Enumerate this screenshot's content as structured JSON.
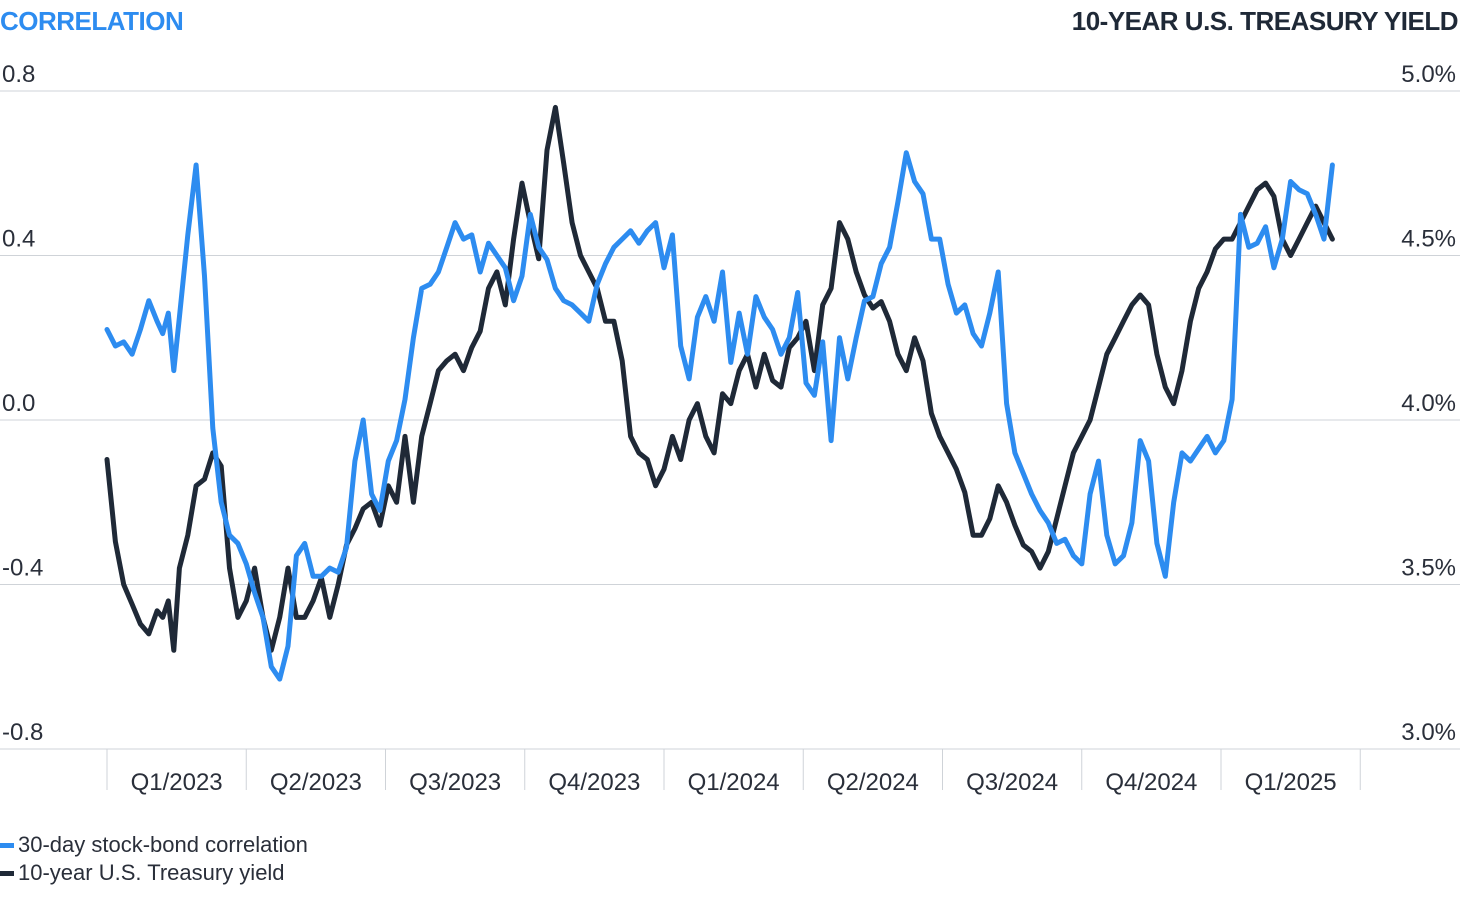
{
  "chart_data": {
    "type": "line",
    "title": "",
    "left_axis_title": "CORRELATION",
    "right_axis_title": "10-YEAR U.S. TREASURY YIELD",
    "left_ylim": [
      -0.8,
      0.8
    ],
    "right_ylim": [
      3.0,
      5.0
    ],
    "left_ticks": [
      "0.8",
      "0.4",
      "0.0",
      "-0.4",
      "-0.8"
    ],
    "left_tick_values": [
      0.8,
      0.4,
      0.0,
      -0.4,
      -0.8
    ],
    "right_ticks": [
      "5.0%",
      "4.5%",
      "4.0%",
      "3.5%",
      "3.0%"
    ],
    "x_categories": [
      "Q1/2023",
      "Q2/2023",
      "Q3/2023",
      "Q4/2023",
      "Q1/2024",
      "Q2/2024",
      "Q3/2024",
      "Q4/2024",
      "Q1/2025"
    ],
    "grid": true,
    "legend_position": "bottom-left",
    "colors": {
      "correlation": "#2d8cf0",
      "yield": "#1f2937",
      "grid": "#cfd3d8"
    },
    "series": [
      {
        "name": "30-day stock-bond correlation",
        "axis": "left",
        "x": [
          0.0,
          0.06,
          0.12,
          0.18,
          0.24,
          0.3,
          0.36,
          0.4,
          0.44,
          0.48,
          0.52,
          0.58,
          0.64,
          0.7,
          0.76,
          0.82,
          0.88,
          0.94,
          1.0,
          1.06,
          1.12,
          1.18,
          1.24,
          1.3,
          1.36,
          1.42,
          1.48,
          1.54,
          1.6,
          1.66,
          1.72,
          1.78,
          1.84,
          1.9,
          1.96,
          2.02,
          2.08,
          2.14,
          2.2,
          2.26,
          2.32,
          2.38,
          2.44,
          2.5,
          2.56,
          2.62,
          2.68,
          2.74,
          2.8,
          2.86,
          2.92,
          2.98,
          3.04,
          3.1,
          3.16,
          3.22,
          3.28,
          3.34,
          3.4,
          3.46,
          3.52,
          3.58,
          3.64,
          3.7,
          3.76,
          3.82,
          3.88,
          3.94,
          4.0,
          4.06,
          4.12,
          4.18,
          4.24,
          4.3,
          4.36,
          4.42,
          4.48,
          4.54,
          4.6,
          4.66,
          4.72,
          4.78,
          4.84,
          4.9,
          4.96,
          5.02,
          5.08,
          5.14,
          5.2,
          5.26,
          5.32,
          5.38,
          5.44,
          5.5,
          5.56,
          5.62,
          5.68,
          5.74,
          5.8,
          5.86,
          5.92,
          5.98,
          6.04,
          6.1,
          6.16,
          6.22,
          6.28,
          6.34,
          6.4,
          6.46,
          6.52,
          6.58,
          6.64,
          6.7,
          6.76,
          6.82,
          6.88,
          6.94,
          7.0,
          7.06,
          7.12,
          7.18,
          7.24,
          7.3,
          7.36,
          7.42,
          7.48,
          7.54,
          7.6,
          7.66,
          7.72,
          7.78,
          7.84,
          7.9,
          7.96,
          8.02,
          8.08,
          8.14,
          8.2,
          8.26,
          8.32,
          8.38,
          8.44,
          8.5,
          8.56,
          8.62,
          8.68,
          8.74,
          8.8
        ],
        "values": [
          0.22,
          0.18,
          0.19,
          0.16,
          0.22,
          0.29,
          0.24,
          0.21,
          0.26,
          0.12,
          0.25,
          0.45,
          0.62,
          0.35,
          -0.02,
          -0.2,
          -0.28,
          -0.3,
          -0.35,
          -0.42,
          -0.48,
          -0.6,
          -0.63,
          -0.55,
          -0.33,
          -0.3,
          -0.38,
          -0.38,
          -0.36,
          -0.37,
          -0.31,
          -0.1,
          0.0,
          -0.18,
          -0.22,
          -0.1,
          -0.05,
          0.05,
          0.2,
          0.32,
          0.33,
          0.36,
          0.42,
          0.48,
          0.44,
          0.45,
          0.36,
          0.43,
          0.4,
          0.37,
          0.29,
          0.35,
          0.5,
          0.42,
          0.39,
          0.32,
          0.29,
          0.28,
          0.26,
          0.24,
          0.33,
          0.38,
          0.42,
          0.44,
          0.46,
          0.43,
          0.46,
          0.48,
          0.37,
          0.45,
          0.18,
          0.1,
          0.25,
          0.3,
          0.24,
          0.36,
          0.14,
          0.26,
          0.16,
          0.3,
          0.25,
          0.22,
          0.16,
          0.2,
          0.31,
          0.09,
          0.06,
          0.19,
          -0.05,
          0.2,
          0.1,
          0.2,
          0.29,
          0.3,
          0.38,
          0.42,
          0.53,
          0.65,
          0.58,
          0.55,
          0.44,
          0.44,
          0.33,
          0.26,
          0.28,
          0.21,
          0.18,
          0.26,
          0.36,
          0.04,
          -0.08,
          -0.13,
          -0.18,
          -0.22,
          -0.25,
          -0.3,
          -0.29,
          -0.33,
          -0.35,
          -0.18,
          -0.1,
          -0.28,
          -0.35,
          -0.33,
          -0.25,
          -0.05,
          -0.1,
          -0.3,
          -0.38,
          -0.2,
          -0.08,
          -0.1,
          -0.07,
          -0.04,
          -0.08,
          -0.05,
          0.05,
          0.5,
          0.42,
          0.43,
          0.47,
          0.37,
          0.44,
          0.58,
          0.56,
          0.55,
          0.5,
          0.44,
          0.62
        ]
      },
      {
        "name": "10-year U.S. Treasury yield",
        "axis": "right",
        "x": [
          0.0,
          0.06,
          0.12,
          0.18,
          0.24,
          0.3,
          0.36,
          0.4,
          0.44,
          0.48,
          0.52,
          0.58,
          0.64,
          0.7,
          0.76,
          0.82,
          0.88,
          0.94,
          1.0,
          1.06,
          1.12,
          1.18,
          1.24,
          1.3,
          1.36,
          1.42,
          1.48,
          1.54,
          1.6,
          1.66,
          1.72,
          1.78,
          1.84,
          1.9,
          1.96,
          2.02,
          2.08,
          2.14,
          2.2,
          2.26,
          2.32,
          2.38,
          2.44,
          2.5,
          2.56,
          2.62,
          2.68,
          2.74,
          2.8,
          2.86,
          2.92,
          2.98,
          3.04,
          3.1,
          3.16,
          3.22,
          3.28,
          3.34,
          3.4,
          3.46,
          3.52,
          3.58,
          3.64,
          3.7,
          3.76,
          3.82,
          3.88,
          3.94,
          4.0,
          4.06,
          4.12,
          4.18,
          4.24,
          4.3,
          4.36,
          4.42,
          4.48,
          4.54,
          4.6,
          4.66,
          4.72,
          4.78,
          4.84,
          4.9,
          4.96,
          5.02,
          5.08,
          5.14,
          5.2,
          5.26,
          5.32,
          5.38,
          5.44,
          5.5,
          5.56,
          5.62,
          5.68,
          5.74,
          5.8,
          5.86,
          5.92,
          5.98,
          6.04,
          6.1,
          6.16,
          6.22,
          6.28,
          6.34,
          6.4,
          6.46,
          6.52,
          6.58,
          6.64,
          6.7,
          6.76,
          6.82,
          6.88,
          6.94,
          7.0,
          7.06,
          7.12,
          7.18,
          7.24,
          7.3,
          7.36,
          7.42,
          7.48,
          7.54,
          7.6,
          7.66,
          7.72,
          7.78,
          7.84,
          7.9,
          7.96,
          8.02,
          8.08,
          8.14,
          8.2,
          8.26,
          8.32,
          8.38,
          8.44,
          8.5,
          8.56,
          8.62,
          8.68,
          8.74,
          8.8
        ],
        "values": [
          3.88,
          3.63,
          3.5,
          3.44,
          3.38,
          3.35,
          3.42,
          3.4,
          3.45,
          3.3,
          3.55,
          3.65,
          3.8,
          3.82,
          3.9,
          3.86,
          3.55,
          3.4,
          3.45,
          3.55,
          3.4,
          3.3,
          3.4,
          3.55,
          3.4,
          3.4,
          3.45,
          3.52,
          3.4,
          3.5,
          3.62,
          3.67,
          3.73,
          3.75,
          3.68,
          3.8,
          3.75,
          3.95,
          3.75,
          3.95,
          4.05,
          4.15,
          4.18,
          4.2,
          4.15,
          4.22,
          4.27,
          4.4,
          4.45,
          4.35,
          4.55,
          4.72,
          4.6,
          4.49,
          4.82,
          4.95,
          4.78,
          4.6,
          4.5,
          4.45,
          4.4,
          4.3,
          4.3,
          4.18,
          3.95,
          3.9,
          3.88,
          3.8,
          3.85,
          3.95,
          3.88,
          4.0,
          4.05,
          3.95,
          3.9,
          4.08,
          4.05,
          4.15,
          4.2,
          4.1,
          4.2,
          4.12,
          4.1,
          4.22,
          4.25,
          4.3,
          4.15,
          4.35,
          4.4,
          4.6,
          4.55,
          4.45,
          4.38,
          4.34,
          4.36,
          4.3,
          4.2,
          4.15,
          4.25,
          4.18,
          4.02,
          3.95,
          3.9,
          3.85,
          3.78,
          3.65,
          3.65,
          3.7,
          3.8,
          3.75,
          3.68,
          3.62,
          3.6,
          3.55,
          3.6,
          3.7,
          3.8,
          3.9,
          3.95,
          4.0,
          4.1,
          4.2,
          4.25,
          4.3,
          4.35,
          4.38,
          4.35,
          4.2,
          4.1,
          4.05,
          4.15,
          4.3,
          4.4,
          4.45,
          4.52,
          4.55,
          4.55,
          4.6,
          4.65,
          4.7,
          4.72,
          4.68,
          4.55,
          4.5,
          4.55,
          4.6,
          4.65,
          4.6,
          4.55
        ]
      }
    ]
  }
}
